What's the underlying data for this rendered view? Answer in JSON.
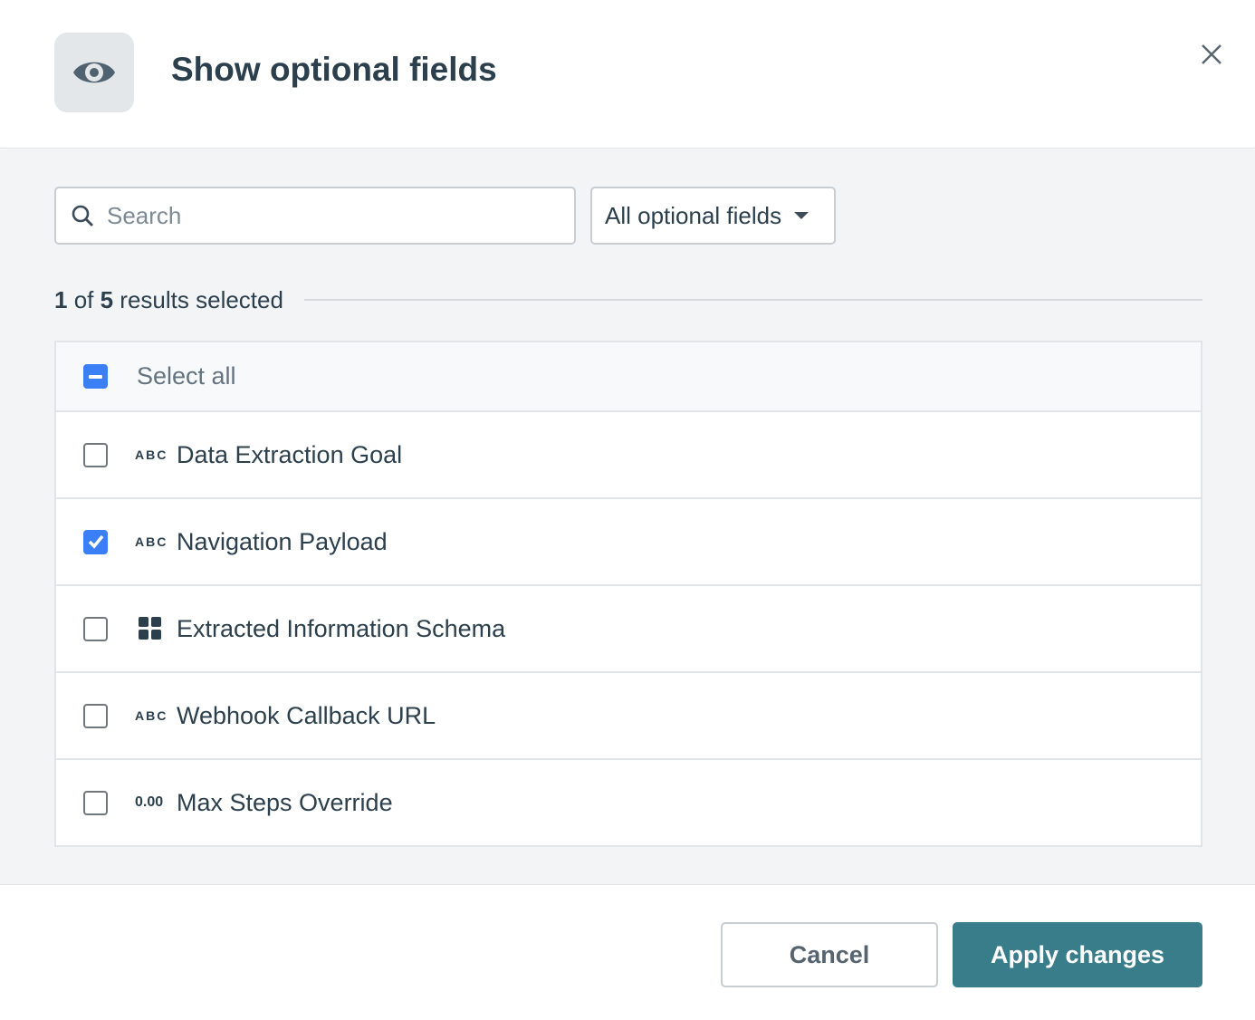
{
  "header": {
    "title": "Show optional fields",
    "icon": "eye-icon"
  },
  "search": {
    "placeholder": "Search",
    "value": ""
  },
  "filter": {
    "selected": "All optional fields"
  },
  "summary": {
    "selected": "1",
    "of": " of ",
    "total": "5",
    "suffix": " results selected"
  },
  "select_all": {
    "label": "Select all",
    "state": "indeterminate"
  },
  "fields": [
    {
      "type": "ABC",
      "label": "Data Extraction Goal",
      "checked": false
    },
    {
      "type": "ABC",
      "label": "Navigation Payload",
      "checked": true
    },
    {
      "type": "grid-icon",
      "label": "Extracted Information Schema",
      "checked": false
    },
    {
      "type": "ABC",
      "label": "Webhook Callback URL",
      "checked": false
    },
    {
      "type": "0.00",
      "label": "Max Steps Override",
      "checked": false
    }
  ],
  "footer": {
    "cancel": "Cancel",
    "apply": "Apply changes"
  },
  "colors": {
    "accent": "#3a7ff6",
    "primary": "#3a7d8a",
    "text": "#2b3f4c"
  }
}
